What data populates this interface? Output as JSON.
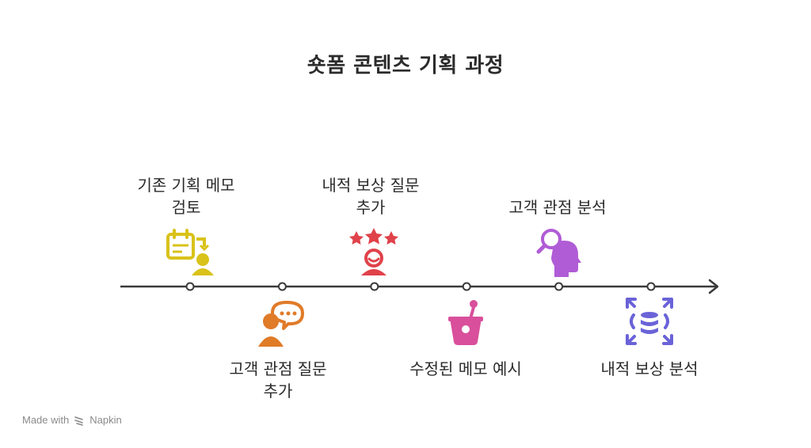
{
  "title": "숏폼 콘텐츠 기획 과정",
  "steps": [
    {
      "line1": "기존 기획 메모",
      "line2": "검토",
      "position": "above",
      "color": "#d9c21a",
      "icon": "calendar-person-icon"
    },
    {
      "line1": "고객 관점 질문",
      "line2": "추가",
      "position": "below",
      "color": "#e07b28",
      "icon": "person-speech-icon"
    },
    {
      "line1": "내적 보상 질문",
      "line2": "추가",
      "position": "above",
      "color": "#e0424a",
      "icon": "stars-person-icon"
    },
    {
      "line1": "수정된 메모 예시",
      "line2": "",
      "position": "below",
      "color": "#d94f9b",
      "icon": "drink-cup-icon"
    },
    {
      "line1": "고객 관점 분석",
      "line2": "",
      "position": "above",
      "color": "#b05cd6",
      "icon": "head-magnifier-icon"
    },
    {
      "line1": "내적 보상 분석",
      "line2": "",
      "position": "below",
      "color": "#6a63d8",
      "icon": "database-expand-icon"
    }
  ],
  "footer": {
    "made_with": "Made with",
    "brand": "Napkin"
  }
}
